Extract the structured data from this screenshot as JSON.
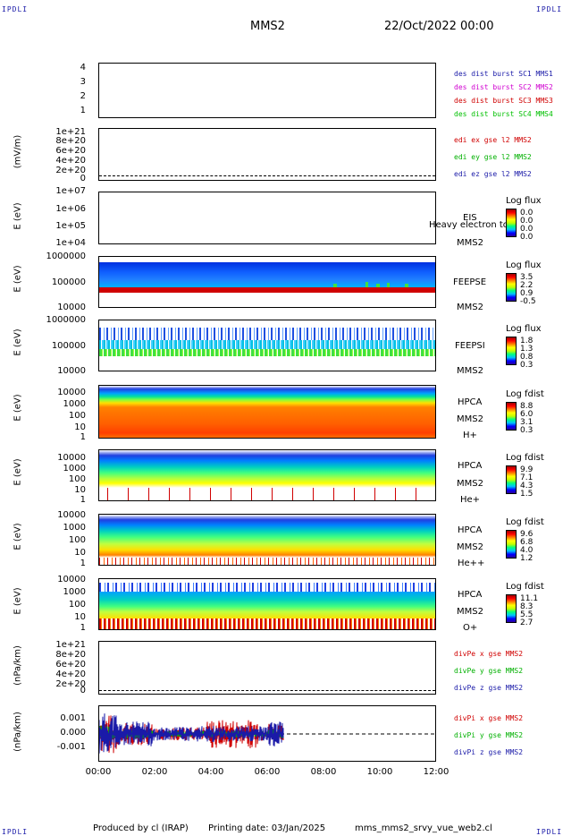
{
  "header": {
    "corner_left_top": "IPDLI",
    "corner_right_top": "IPDLI",
    "corner_left_bottom": "IPDLI",
    "corner_right_bottom": "IPDLI",
    "spacecraft": "MMS2",
    "date": "22/Oct/2022 00:00"
  },
  "footer": {
    "produced": "Produced by cl (IRAP)",
    "printing": "Printing date: 03/Jan/2025",
    "file": "mms_mms2_srvy_vue_web2.cl"
  },
  "colors": {
    "mms1": "#1a1aa8",
    "mms2": "#d000d0",
    "mms3": "#d00000",
    "mms4": "#00c000",
    "red": "#d00000",
    "green": "#00b000",
    "blue": "#1a1aa8"
  },
  "chart_data": {
    "type": "multi-panel time series",
    "x_ticks": [
      "00:00",
      "02:00",
      "04:00",
      "06:00",
      "08:00",
      "10:00",
      "12:00"
    ],
    "panels": [
      {
        "id": "burst",
        "yticks": [
          "4",
          "3",
          "2",
          "1"
        ],
        "ylabel": "",
        "legend": [
          {
            "text": "des dist burst SC1 MMS1",
            "color": "mms1"
          },
          {
            "text": "des dist burst SC2 MMS2",
            "color": "mms2"
          },
          {
            "text": "des dist burst SC3 MMS3",
            "color": "mms3"
          },
          {
            "text": "des dist burst SC4 MMS4",
            "color": "mms4"
          }
        ]
      },
      {
        "id": "edi",
        "ylabel": "(mV/m)",
        "yticks": [
          "1e+21",
          "8e+20",
          "6e+20",
          "4e+20",
          "2e+20",
          "0"
        ],
        "legend": [
          {
            "text": "edi ex gse l2 MMS2",
            "color": "red"
          },
          {
            "text": "edi ey gse l2 MMS2",
            "color": "green"
          },
          {
            "text": "edi ez gse l2 MMS2",
            "color": "blue"
          }
        ]
      },
      {
        "id": "eis",
        "ylabel": "E (eV)",
        "yticks": [
          "1e+07",
          "1e+06",
          "1e+05",
          "1e+04"
        ],
        "side": [
          "EIS",
          "MMS2"
        ],
        "overlay": "Heavy electron tof",
        "cb_title": "Log flux",
        "cb_values": [
          "0.0",
          "0.0",
          "0.0",
          "0.0"
        ]
      },
      {
        "id": "feepse",
        "ylabel": "E (eV)",
        "yticks": [
          "1000000",
          "100000",
          "10000"
        ],
        "side": [
          "FEEPSE",
          "MMS2"
        ],
        "cb_title": "Log flux",
        "cb_values": [
          "3.5",
          "2.2",
          "0.9",
          "-0.5"
        ]
      },
      {
        "id": "feepsi",
        "ylabel": "E (eV)",
        "yticks": [
          "1000000",
          "100000",
          "10000"
        ],
        "side": [
          "FEEPSI",
          "MMS2"
        ],
        "cb_title": "Log flux",
        "cb_values": [
          "1.8",
          "1.3",
          "0.8",
          "0.3"
        ]
      },
      {
        "id": "hpca_h",
        "ylabel": "E (eV)",
        "yticks": [
          "10000",
          "1000",
          "100",
          "10",
          "1"
        ],
        "side": [
          "HPCA",
          "MMS2",
          "H+"
        ],
        "cb_title": "Log fdist",
        "cb_values": [
          "8.8",
          "6.0",
          "3.1",
          "0.3"
        ]
      },
      {
        "id": "hpca_he",
        "ylabel": "E (eV)",
        "yticks": [
          "10000",
          "1000",
          "100",
          "10",
          "1"
        ],
        "side": [
          "HPCA",
          "MMS2",
          "He+"
        ],
        "cb_title": "Log fdist",
        "cb_values": [
          "9.9",
          "7.1",
          "4.3",
          "1.5"
        ]
      },
      {
        "id": "hpca_hepp",
        "ylabel": "E (eV)",
        "yticks": [
          "10000",
          "1000",
          "100",
          "10",
          "1"
        ],
        "side": [
          "HPCA",
          "MMS2",
          "He++"
        ],
        "cb_title": "Log fdist",
        "cb_values": [
          "9.6",
          "6.8",
          "4.0",
          "1.2"
        ]
      },
      {
        "id": "hpca_o",
        "ylabel": "E (eV)",
        "yticks": [
          "10000",
          "1000",
          "100",
          "10",
          "1"
        ],
        "side": [
          "HPCA",
          "MMS2",
          "O+"
        ],
        "cb_title": "Log fdist",
        "cb_values": [
          "11.1",
          "8.3",
          "5.5",
          "2.7"
        ]
      },
      {
        "id": "divpe",
        "ylabel": "(nPa/km)",
        "yticks": [
          "1e+21",
          "8e+20",
          "6e+20",
          "4e+20",
          "2e+20",
          "0"
        ],
        "legend": [
          {
            "text": "divPe x gse MMS2",
            "color": "red"
          },
          {
            "text": "divPe y gse MMS2",
            "color": "green"
          },
          {
            "text": "divPe z gse MMS2",
            "color": "blue"
          }
        ]
      },
      {
        "id": "divpi",
        "ylabel": "(nPa/km)",
        "yticks": [
          "0.001",
          "0.000",
          "-0.001"
        ],
        "legend": [
          {
            "text": "divPi x gse MMS2",
            "color": "red"
          },
          {
            "text": "divPi y gse MMS2",
            "color": "green"
          },
          {
            "text": "divPi z gse MMS2",
            "color": "blue"
          }
        ]
      }
    ]
  }
}
